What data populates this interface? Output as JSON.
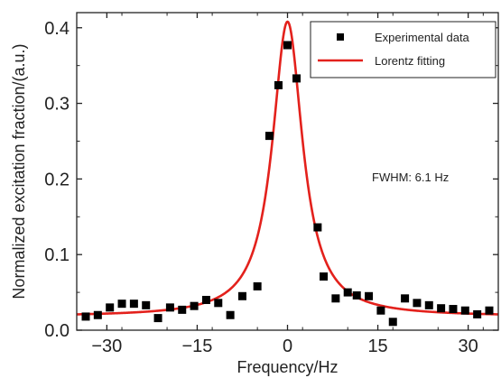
{
  "chart_data": {
    "type": "scatter",
    "title": "",
    "xlabel": "Frequency/Hz",
    "ylabel": "Normalized excitation fraction/(a.u.)",
    "xlim": [
      -35,
      35
    ],
    "ylim": [
      0,
      0.42
    ],
    "x_ticks": [
      -30,
      -15,
      0,
      15,
      30
    ],
    "x_tick_labels": [
      "−30",
      "−15",
      "0",
      "15",
      "30"
    ],
    "y_ticks": [
      0.0,
      0.1,
      0.2,
      0.3,
      0.4
    ],
    "y_tick_labels": [
      "0.0",
      "0.1",
      "0.2",
      "0.3",
      "0.4"
    ],
    "grid": false,
    "legend_position": "top-right",
    "annotation": "FWHM: 6.1 Hz",
    "series": [
      {
        "name": "Experimental data",
        "kind": "scatter",
        "marker": "square",
        "color": "#000000",
        "x": [
          -33.5,
          -31.5,
          -29.5,
          -27.5,
          -25.5,
          -23.5,
          -21.5,
          -19.5,
          -17.5,
          -15.5,
          -13.5,
          -11.5,
          -9.5,
          -7.5,
          -5,
          -3,
          -1.5,
          0,
          1.5,
          5,
          6,
          8,
          10,
          11.5,
          13.5,
          15.5,
          17.5,
          19.5,
          21.5,
          23.5,
          25.5,
          27.5,
          29.5,
          31.5,
          33.5
        ],
        "y": [
          0.018,
          0.02,
          0.03,
          0.035,
          0.035,
          0.033,
          0.016,
          0.03,
          0.027,
          0.032,
          0.04,
          0.036,
          0.02,
          0.045,
          0.058,
          0.257,
          0.324,
          0.377,
          0.333,
          0.136,
          0.071,
          0.042,
          0.05,
          0.046,
          0.045,
          0.026,
          0.011,
          0.042,
          0.036,
          0.033,
          0.029,
          0.028,
          0.026,
          0.021,
          0.026
        ]
      },
      {
        "name": "Lorentz fitting",
        "kind": "line",
        "color": "#e3211c",
        "model": "lorentzian",
        "center": 0,
        "fwhm": 6.1,
        "amplitude": 0.39,
        "offset": 0.018
      }
    ]
  }
}
